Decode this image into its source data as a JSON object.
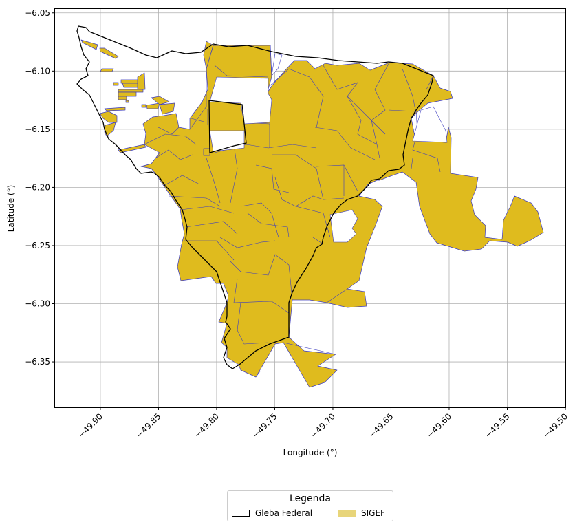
{
  "map": {
    "xlabel": "Longitude (°)",
    "ylabel": "Latitude (°)",
    "x_ticks": [
      "−49.90",
      "−49.85",
      "−49.80",
      "−49.75",
      "−49.70",
      "−49.65",
      "−49.60",
      "−49.55",
      "−49.50"
    ],
    "y_ticks": [
      "−6.05",
      "−6.10",
      "−6.15",
      "−6.20",
      "−6.25",
      "−6.30",
      "−6.35"
    ],
    "x_range": [
      -49.939,
      -49.5
    ],
    "y_range": [
      -6.389,
      -6.046
    ],
    "grid": true
  },
  "legend": {
    "title": "Legenda",
    "gleba_label": "Gleba Federal",
    "sigef_label": "SIGEF"
  },
  "colors": {
    "parcel_fill": "#dfbb1e",
    "parcel_edge": "#3b3bbf",
    "boundary": "#000000",
    "grid": "#b0b0b0"
  }
}
